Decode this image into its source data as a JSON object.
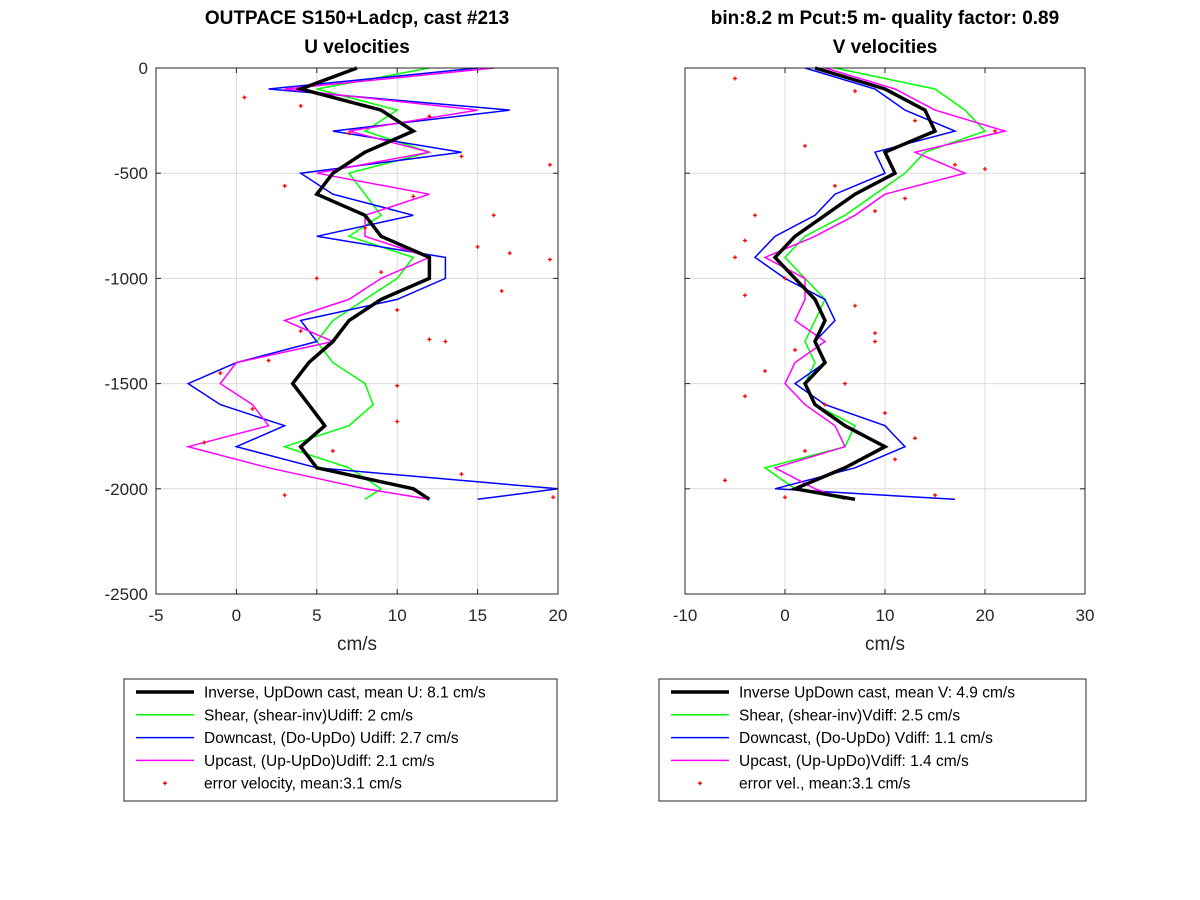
{
  "colors": {
    "inverse": "#000000",
    "shear": "#00ff00",
    "downcast": "#0000ff",
    "upcast": "#ff00ff",
    "error": "#ff0000",
    "grid": "#dcdcdc",
    "axis": "#262626"
  },
  "chart_data": [
    {
      "type": "line",
      "title": "OUTPACE S150+Ladcp, cast #213",
      "subtitle": "U velocities",
      "xlabel": "cm/s",
      "ylabel": "",
      "xlim": [
        -5,
        20
      ],
      "ylim": [
        -2500,
        0
      ],
      "xticks": [
        -5,
        0,
        5,
        10,
        15,
        20
      ],
      "yticks": [
        0,
        -500,
        -1000,
        -1500,
        -2000,
        -2500
      ],
      "xtick_labels": [
        "-5",
        "0",
        "5",
        "10",
        "15",
        "20"
      ],
      "ytick_labels": [
        "0",
        "-500",
        "-1000",
        "-1500",
        "-2000",
        "-2500"
      ],
      "grid": true,
      "legend_position": "below",
      "legend": [
        "Inverse, UpDown cast, mean U:  8.1 cm/s",
        "Shear, (shear-inv)Udiff:  2 cm/s",
        "Downcast, (Do-UpDo) Udiff:  2.7 cm/s",
        "Upcast, (Up-UpDo)Udiff:  2.1 cm/s",
        "error velocity, mean:3.1 cm/s"
      ],
      "depth": [
        0,
        -100,
        -200,
        -300,
        -400,
        -500,
        -600,
        -700,
        -800,
        -900,
        -1000,
        -1100,
        -1200,
        -1300,
        -1400,
        -1500,
        -1600,
        -1700,
        -1800,
        -1900,
        -2000,
        -2050
      ],
      "series": [
        {
          "key": "inverse",
          "values": [
            7.5,
            4,
            9,
            11,
            8,
            6,
            5,
            8,
            9,
            12,
            12,
            9,
            7,
            6,
            4.5,
            3.5,
            4.5,
            5.5,
            4,
            5,
            11,
            12
          ]
        },
        {
          "key": "shear",
          "values": [
            12,
            5,
            10,
            8,
            12,
            7,
            8,
            9,
            7,
            11,
            10,
            8,
            6,
            5,
            6,
            8,
            8.5,
            7,
            3,
            7,
            9,
            8
          ]
        },
        {
          "key": "downcast",
          "values": [
            15,
            2,
            17,
            6,
            14,
            4,
            6,
            11,
            5,
            13,
            13,
            10,
            4,
            5,
            0,
            -3,
            -1,
            3,
            0,
            5,
            20,
            15
          ]
        },
        {
          "key": "upcast",
          "values": [
            16,
            3,
            15,
            7,
            12,
            5,
            12,
            8,
            8,
            12,
            9,
            7,
            3,
            6,
            0,
            -1,
            1,
            2,
            -3,
            2,
            8,
            12
          ]
        }
      ],
      "error_points": [
        {
          "x": 0.5,
          "y": -140
        },
        {
          "x": 4,
          "y": -180
        },
        {
          "x": 12,
          "y": -230
        },
        {
          "x": 7,
          "y": -310
        },
        {
          "x": 14,
          "y": -420
        },
        {
          "x": 19.5,
          "y": -460
        },
        {
          "x": 3,
          "y": -560
        },
        {
          "x": 11,
          "y": -610
        },
        {
          "x": 16,
          "y": -700
        },
        {
          "x": 8,
          "y": -760
        },
        {
          "x": 17,
          "y": -880
        },
        {
          "x": 19.5,
          "y": -910
        },
        {
          "x": 9,
          "y": -970
        },
        {
          "x": 16.5,
          "y": -1060
        },
        {
          "x": 10,
          "y": -1150
        },
        {
          "x": 4,
          "y": -1250
        },
        {
          "x": 12,
          "y": -1290
        },
        {
          "x": 2,
          "y": -1390
        },
        {
          "x": -1,
          "y": -1450
        },
        {
          "x": 10,
          "y": -1510
        },
        {
          "x": 1,
          "y": -1620
        },
        {
          "x": 10,
          "y": -1680
        },
        {
          "x": -2,
          "y": -1780
        },
        {
          "x": 6,
          "y": -1820
        },
        {
          "x": 14,
          "y": -1930
        },
        {
          "x": 3,
          "y": -2030
        },
        {
          "x": 19.7,
          "y": -2040
        },
        {
          "x": 13,
          "y": -1300
        },
        {
          "x": 5,
          "y": -1000
        },
        {
          "x": 15,
          "y": -850
        }
      ]
    },
    {
      "type": "line",
      "title": "bin:8.2 m  Pcut:5 m- quality factor:  0.89",
      "subtitle": "V velocities",
      "xlabel": "cm/s",
      "ylabel": "",
      "xlim": [
        -10,
        30
      ],
      "ylim": [
        -2500,
        0
      ],
      "xticks": [
        -10,
        0,
        10,
        20,
        30
      ],
      "yticks": [
        0,
        -500,
        -1000,
        -1500,
        -2000,
        -2500
      ],
      "xtick_labels": [
        "-10",
        "0",
        "10",
        "20",
        "30"
      ],
      "grid": true,
      "legend_position": "below",
      "legend": [
        "Inverse UpDown cast, mean V:  4.9 cm/s",
        "Shear, (shear-inv)Vdiff:  2.5 cm/s",
        "Downcast, (Do-UpDo) Vdiff:  1.1 cm/s",
        "Upcast, (Up-UpDo)Vdiff:  1.4 cm/s",
        "error vel., mean:3.1 cm/s"
      ],
      "depth": [
        0,
        -100,
        -200,
        -300,
        -400,
        -500,
        -600,
        -700,
        -800,
        -900,
        -1000,
        -1100,
        -1200,
        -1300,
        -1400,
        -1500,
        -1600,
        -1700,
        -1800,
        -1900,
        -2000,
        -2050
      ],
      "series": [
        {
          "key": "inverse",
          "values": [
            3,
            10,
            14,
            15,
            10,
            11,
            7,
            4,
            1,
            -1,
            1,
            3,
            4,
            3,
            4,
            2,
            3,
            6,
            10,
            6,
            1,
            7
          ]
        },
        {
          "key": "shear",
          "values": [
            5,
            15,
            18,
            20,
            14,
            12,
            9,
            6,
            2,
            0,
            2,
            4,
            3,
            2,
            3,
            2,
            3,
            7,
            6,
            -2,
            1,
            6
          ]
        },
        {
          "key": "downcast",
          "values": [
            2,
            9,
            12,
            17,
            9,
            10,
            5,
            3,
            -1,
            -3,
            0,
            4,
            5,
            3,
            4,
            1,
            4,
            10,
            12,
            7,
            -1,
            17
          ]
        },
        {
          "key": "upcast",
          "values": [
            4,
            11,
            15,
            22,
            13,
            18,
            10,
            7,
            3,
            -2,
            2,
            2,
            1,
            4,
            1,
            0,
            2,
            5,
            6,
            -1,
            3,
            6
          ]
        }
      ],
      "error_points": [
        {
          "x": -5,
          "y": -50
        },
        {
          "x": 7,
          "y": -110
        },
        {
          "x": 13,
          "y": -250
        },
        {
          "x": 21,
          "y": -300
        },
        {
          "x": 2,
          "y": -370
        },
        {
          "x": 17,
          "y": -460
        },
        {
          "x": 20,
          "y": -480
        },
        {
          "x": 5,
          "y": -560
        },
        {
          "x": 9,
          "y": -680
        },
        {
          "x": -4,
          "y": -820
        },
        {
          "x": -5,
          "y": -900
        },
        {
          "x": 0,
          "y": -1000
        },
        {
          "x": -4,
          "y": -1080
        },
        {
          "x": 7,
          "y": -1130
        },
        {
          "x": 9,
          "y": -1260
        },
        {
          "x": 1,
          "y": -1340
        },
        {
          "x": -2,
          "y": -1440
        },
        {
          "x": 6,
          "y": -1500
        },
        {
          "x": -4,
          "y": -1560
        },
        {
          "x": 10,
          "y": -1640
        },
        {
          "x": 13,
          "y": -1760
        },
        {
          "x": 2,
          "y": -1820
        },
        {
          "x": 11,
          "y": -1860
        },
        {
          "x": -6,
          "y": -1960
        },
        {
          "x": 0,
          "y": -2040
        },
        {
          "x": 15,
          "y": -2030
        },
        {
          "x": 9,
          "y": -1300
        },
        {
          "x": -3,
          "y": -700
        },
        {
          "x": 12,
          "y": -620
        },
        {
          "x": 4,
          "y": -1600
        }
      ]
    }
  ]
}
